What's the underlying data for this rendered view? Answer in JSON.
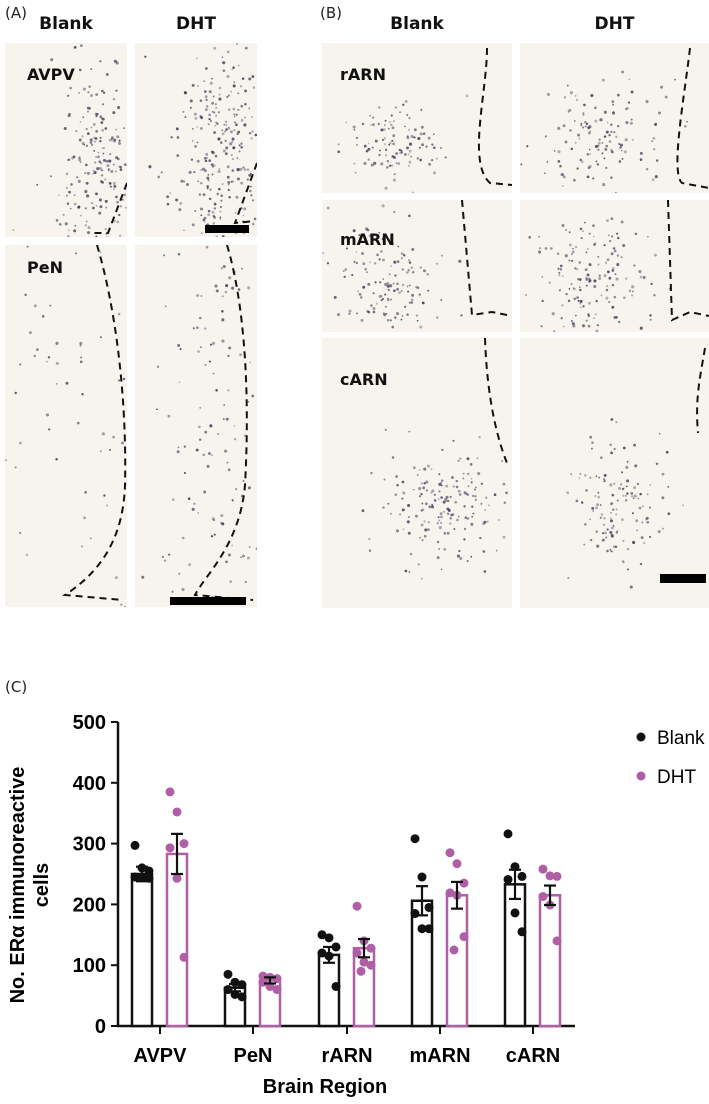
{
  "panel_a": {
    "label": "(A)",
    "columns": [
      "Blank",
      "DHT"
    ],
    "regions": [
      "AVPV",
      "PeN"
    ]
  },
  "panel_b": {
    "label": "(B)",
    "columns": [
      "Blank",
      "DHT"
    ],
    "regions": [
      "rARN",
      "mARN",
      "cARN"
    ]
  },
  "panel_c": {
    "label": "(C)"
  },
  "colors": {
    "blank": "#111111",
    "dht": "#b05fa6",
    "tissue": "#f7f4ee",
    "stain": "#3c3250"
  },
  "chart_data": {
    "type": "bar",
    "categories": [
      "AVPV",
      "PeN",
      "rARN",
      "mARN",
      "cARN"
    ],
    "xlabel": "Brain Region",
    "ylabel": "No. ERα immunoreactive cells",
    "ylim": [
      0,
      500
    ],
    "yticks": [
      "0",
      "100",
      "200",
      "300",
      "400",
      "500"
    ],
    "legend": {
      "position": "top-right",
      "entries": [
        "Blank",
        "DHT"
      ]
    },
    "grid": false,
    "series": [
      {
        "name": "Blank",
        "values": [
          250,
          63,
          117,
          206,
          233
        ],
        "sem": [
          12,
          6,
          13,
          24,
          24
        ],
        "points": [
          [
            297,
            260,
            255,
            245,
            245,
            243
          ],
          [
            85,
            72,
            68,
            60,
            52,
            48
          ],
          [
            150,
            145,
            130,
            120,
            115,
            65
          ],
          [
            308,
            245,
            195,
            185,
            160,
            160
          ],
          [
            316,
            262,
            246,
            241,
            186,
            155
          ]
        ]
      },
      {
        "name": "DHT",
        "values": [
          283,
          75,
          128,
          215,
          215
        ],
        "sem": [
          33,
          5,
          15,
          22,
          16
        ],
        "points": [
          [
            385,
            352,
            300,
            293,
            243,
            113
          ],
          [
            82,
            80,
            78,
            72,
            65,
            60
          ],
          [
            197,
            140,
            128,
            120,
            105,
            100,
            90
          ],
          [
            285,
            267,
            235,
            219,
            215,
            147,
            125
          ],
          [
            258,
            247,
            246,
            213,
            199,
            140
          ]
        ]
      }
    ]
  }
}
